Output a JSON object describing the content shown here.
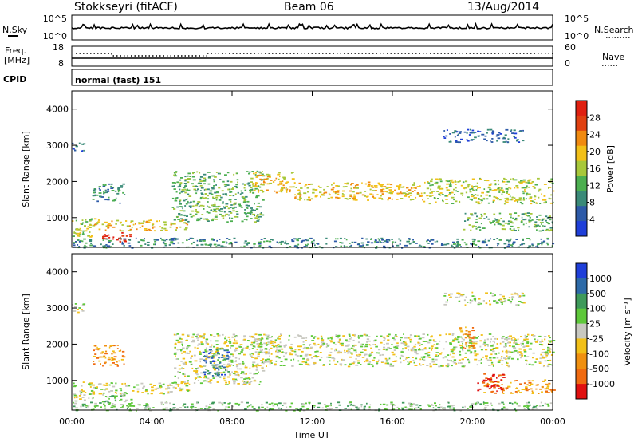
{
  "header": {
    "station": "Stokkseyri (fitACF)",
    "beam": "Beam 06",
    "date": "13/Aug/2014"
  },
  "strips": {
    "nsky_label": "N.Sky",
    "nsky_ticks": [
      "10^5",
      "10^0"
    ],
    "nsearch_label": "N.Search",
    "freq_label_1": "Freq.",
    "freq_label_2": "[MHz]",
    "freq_ticks": [
      "18",
      "8"
    ],
    "nave_ticks": [
      "60",
      "0"
    ],
    "nave_label": "Nave",
    "cpid_label": "CPID",
    "cpid_text": "normal (fast) 151"
  },
  "colors": {
    "power": [
      "#1f3fd9",
      "#2d5aa8",
      "#3a8a78",
      "#4caf50",
      "#a8c83a",
      "#f2c018",
      "#f08a10",
      "#e04010",
      "#e02010"
    ],
    "velocity": [
      "#1f3fd9",
      "#2d6aa8",
      "#3e9a5a",
      "#5ec83a",
      "#c8c8c0",
      "#f2c018",
      "#f09010",
      "#f06a10",
      "#e01010"
    ]
  },
  "chart_data": [
    {
      "type": "heatmap",
      "name": "power",
      "xlabel": "",
      "ylabel": "Slant Range [km]",
      "x_range": [
        "00:00",
        "00:00"
      ],
      "xlim_hours": [
        0,
        24
      ],
      "ylim_km": [
        180,
        4500
      ],
      "y_ticks": [
        "1000",
        "2000",
        "3000",
        "4000"
      ],
      "x_ticks": [
        "00:00",
        "04:00",
        "08:00",
        "12:00",
        "16:00",
        "20:00",
        "00:00"
      ],
      "colorbar_label": "Power [dB]",
      "colorbar_ticks": [
        "4",
        "8",
        "12",
        "16",
        "20",
        "24",
        "28"
      ],
      "colorbar_range": [
        0,
        30
      ],
      "regions": [
        {
          "t0": 0.0,
          "t1": 0.6,
          "r0": 2850,
          "r1": 3150,
          "level": 1
        },
        {
          "t0": 0.0,
          "t1": 1.2,
          "r0": 450,
          "r1": 1000,
          "level": 4
        },
        {
          "t0": 1.0,
          "t1": 5.8,
          "r0": 650,
          "r1": 950,
          "level": 5
        },
        {
          "t0": 1.5,
          "t1": 3.0,
          "r0": 350,
          "r1": 600,
          "level": 8
        },
        {
          "t0": 1.0,
          "t1": 2.6,
          "r0": 1400,
          "r1": 1950,
          "level": 2
        },
        {
          "t0": 5.0,
          "t1": 9.5,
          "r0": 900,
          "r1": 2300,
          "level": 3
        },
        {
          "t0": 9.0,
          "t1": 11.0,
          "r0": 1700,
          "r1": 2300,
          "level": 5
        },
        {
          "t0": 11.0,
          "t1": 17.5,
          "r0": 1500,
          "r1": 2000,
          "level": 5
        },
        {
          "t0": 17.5,
          "t1": 24.0,
          "r0": 1400,
          "r1": 2100,
          "level": 4
        },
        {
          "t0": 19.5,
          "t1": 24.0,
          "r0": 650,
          "r1": 1150,
          "level": 3
        },
        {
          "t0": 18.5,
          "t1": 22.5,
          "r0": 3100,
          "r1": 3450,
          "level": 1
        },
        {
          "t0": 0.0,
          "t1": 24.0,
          "r0": 180,
          "r1": 450,
          "level": 2
        }
      ]
    },
    {
      "type": "heatmap",
      "name": "velocity",
      "xlabel": "Time UT",
      "ylabel": "Slant Range [km]",
      "x_range": [
        "00:00",
        "00:00"
      ],
      "xlim_hours": [
        0,
        24
      ],
      "ylim_km": [
        180,
        4500
      ],
      "y_ticks": [
        "1000",
        "2000",
        "3000",
        "4000"
      ],
      "x_ticks": [
        "00:00",
        "04:00",
        "08:00",
        "12:00",
        "16:00",
        "20:00",
        "00:00"
      ],
      "colorbar_label": "Velocity [m s⁻¹]",
      "colorbar_ticks": [
        "1000",
        "500",
        "100",
        "25",
        "-25",
        "-100",
        "-500",
        "-1000"
      ],
      "regions": [
        {
          "t0": 0.0,
          "t1": 0.6,
          "r0": 2850,
          "r1": 3150,
          "level": 4
        },
        {
          "t0": 0.0,
          "t1": 1.2,
          "r0": 450,
          "r1": 1000,
          "level": 4
        },
        {
          "t0": 1.0,
          "t1": 5.8,
          "r0": 650,
          "r1": 950,
          "level": 4
        },
        {
          "t0": 1.5,
          "t1": 3.0,
          "r0": 350,
          "r1": 650,
          "level": 3
        },
        {
          "t0": 1.0,
          "t1": 2.6,
          "r0": 1400,
          "r1": 2000,
          "level": 6
        },
        {
          "t0": 5.0,
          "t1": 9.5,
          "r0": 900,
          "r1": 2300,
          "level": 4
        },
        {
          "t0": 6.5,
          "t1": 7.8,
          "r0": 1100,
          "r1": 1900,
          "level": 1
        },
        {
          "t0": 9.0,
          "t1": 24.0,
          "r0": 1400,
          "r1": 2300,
          "level": 4
        },
        {
          "t0": 20.5,
          "t1": 24.0,
          "r0": 650,
          "r1": 1050,
          "level": 6
        },
        {
          "t0": 20.2,
          "t1": 21.5,
          "r0": 700,
          "r1": 1200,
          "level": 8
        },
        {
          "t0": 19.3,
          "t1": 20.2,
          "r0": 1900,
          "r1": 2500,
          "level": 6
        },
        {
          "t0": 18.5,
          "t1": 22.5,
          "r0": 3100,
          "r1": 3450,
          "level": 4
        },
        {
          "t0": 0.0,
          "t1": 24.0,
          "r0": 180,
          "r1": 420,
          "level": 3
        }
      ]
    }
  ]
}
